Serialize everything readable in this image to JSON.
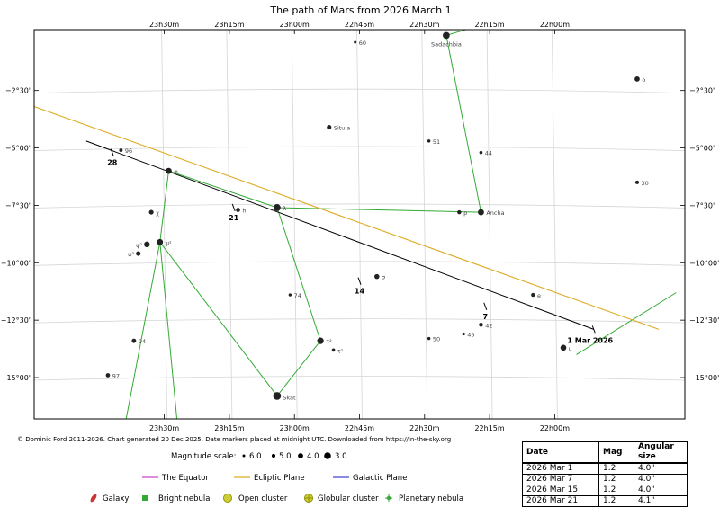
{
  "colors": {
    "path": "#000000",
    "ecliptic": "#ddaa22",
    "equator": "#cc44cc",
    "galactic": "#4444cc",
    "constellation": "#33aa33",
    "grid": "#d6d6d6",
    "galaxy": "#cc3333",
    "nebula": "#33aa33",
    "cluster": "#cccc33"
  },
  "chart_data": {
    "type": "scatter",
    "title": "The path of Mars from 2026 March 1",
    "xlabel": "",
    "ylabel": "",
    "ra_ticks": [
      "23h30m",
      "23h15m",
      "23h00m",
      "22h45m",
      "22h30m",
      "22h15m",
      "22h00m"
    ],
    "dec_ticks": [
      "−2°30'",
      "−5°00'",
      "−7°30'",
      "−10°00'",
      "−12°30'",
      "−15°00'"
    ],
    "grid": true,
    "legend_position": "bottom",
    "path_markers": [
      {
        "label": "1 Mar 2026",
        "ra_min": 1311,
        "dec": -12.9
      },
      {
        "label": "7",
        "ra_min": 1336,
        "dec": -11.9
      },
      {
        "label": "14",
        "ra_min": 1365,
        "dec": -10.8
      },
      {
        "label": "21",
        "ra_min": 1394,
        "dec": -7.6
      },
      {
        "label": "28",
        "ra_min": 1422,
        "dec": -5.2
      }
    ],
    "path_start": {
      "ra_min": 1428,
      "dec": -4.7
    },
    "path_end": {
      "ra_min": 1311,
      "dec": -12.9
    },
    "ecliptic": {
      "start": {
        "ra_min": 1440,
        "dec": -3.2
      },
      "end": {
        "ra_min": 1296,
        "dec": -12.9
      }
    },
    "stars": [
      {
        "label": "Sadachbia",
        "ra_min": 1345,
        "dec": -0.1,
        "mag": 3.8
      },
      {
        "label": "60",
        "ra_min": 1366,
        "dec": -0.4,
        "mag": 6.0
      },
      {
        "label": "ο",
        "ra_min": 1301,
        "dec": -2.0,
        "mag": 4.7
      },
      {
        "label": "Situla",
        "ra_min": 1372,
        "dec": -4.1,
        "mag": 5.0
      },
      {
        "label": "51",
        "ra_min": 1349,
        "dec": -4.7,
        "mag": 5.8
      },
      {
        "label": "44",
        "ra_min": 1337,
        "dec": -5.2,
        "mag": 5.7
      },
      {
        "label": "96",
        "ra_min": 1420,
        "dec": -5.1,
        "mag": 5.6
      },
      {
        "label": "30",
        "ra_min": 1301,
        "dec": -6.5,
        "mag": 5.5
      },
      {
        "label": "φ",
        "ra_min": 1409,
        "dec": -6.0,
        "mag": 4.2
      },
      {
        "label": "χ",
        "ra_min": 1413,
        "dec": -7.8,
        "mag": 5.0
      },
      {
        "label": "h",
        "ra_min": 1393,
        "dec": -7.7,
        "mag": 5.2
      },
      {
        "label": "λ",
        "ra_min": 1384,
        "dec": -7.6,
        "mag": 3.7
      },
      {
        "label": "ρ",
        "ra_min": 1342,
        "dec": -7.8,
        "mag": 5.3
      },
      {
        "label": "Ancha",
        "ra_min": 1337,
        "dec": -7.8,
        "mag": 4.2
      },
      {
        "label": "ψ²",
        "ra_min": 1414,
        "dec": -9.2,
        "mag": 4.4
      },
      {
        "label": "ψ¹",
        "ra_min": 1411,
        "dec": -9.1,
        "mag": 4.2
      },
      {
        "label": "ψ³",
        "ra_min": 1416,
        "dec": -9.6,
        "mag": 5.0
      },
      {
        "label": "σ",
        "ra_min": 1361,
        "dec": -10.6,
        "mag": 4.8
      },
      {
        "label": "e",
        "ra_min": 1325,
        "dec": -11.4,
        "mag": 5.4
      },
      {
        "label": "74",
        "ra_min": 1381,
        "dec": -11.4,
        "mag": 5.8
      },
      {
        "label": "42",
        "ra_min": 1337,
        "dec": -12.7,
        "mag": 5.3
      },
      {
        "label": "45",
        "ra_min": 1341,
        "dec": -13.1,
        "mag": 5.9
      },
      {
        "label": "50",
        "ra_min": 1349,
        "dec": -13.3,
        "mag": 5.8
      },
      {
        "label": "τ²",
        "ra_min": 1374,
        "dec": -13.4,
        "mag": 4.0
      },
      {
        "label": "τ¹",
        "ra_min": 1371,
        "dec": -13.8,
        "mag": 5.7
      },
      {
        "label": "ι",
        "ra_min": 1318,
        "dec": -13.7,
        "mag": 4.3
      },
      {
        "label": "94",
        "ra_min": 1417,
        "dec": -13.4,
        "mag": 5.1
      },
      {
        "label": "97",
        "ra_min": 1423,
        "dec": -14.9,
        "mag": 5.2
      },
      {
        "label": "Skat",
        "ra_min": 1384,
        "dec": -15.8,
        "mag": 3.3
      }
    ]
  },
  "footer": {
    "credit": "© Dominic Ford 2011-2026. Chart generated 20 Dec 2025. Date markers placed at midnight UTC. Downloaded from https://in-the-sky.org"
  },
  "legend": {
    "magnitude_label": "Magnitude scale:",
    "magnitudes": [
      "6.0",
      "5.0",
      "4.0",
      "3.0"
    ],
    "lines": [
      {
        "label": "The Equator",
        "color": "#cc44cc"
      },
      {
        "label": "Ecliptic Plane",
        "color": "#ddaa22"
      },
      {
        "label": "Galactic Plane",
        "color": "#4444cc"
      }
    ],
    "objects": [
      {
        "label": "Galaxy",
        "icon": "galaxy-icon"
      },
      {
        "label": "Bright nebula",
        "icon": "nebula-icon"
      },
      {
        "label": "Open cluster",
        "icon": "open-cluster-icon"
      },
      {
        "label": "Globular cluster",
        "icon": "globular-cluster-icon"
      },
      {
        "label": "Planetary nebula",
        "icon": "planetary-nebula-icon"
      }
    ]
  },
  "table": {
    "headers": [
      "Date",
      "Mag",
      "Angular size"
    ],
    "rows": [
      [
        "2026 Mar 1",
        "1.2",
        "4.0\""
      ],
      [
        "2026 Mar 7",
        "1.2",
        "4.0\""
      ],
      [
        "2026 Mar 15",
        "1.2",
        "4.0\""
      ],
      [
        "2026 Mar 21",
        "1.2",
        "4.1\""
      ]
    ]
  }
}
